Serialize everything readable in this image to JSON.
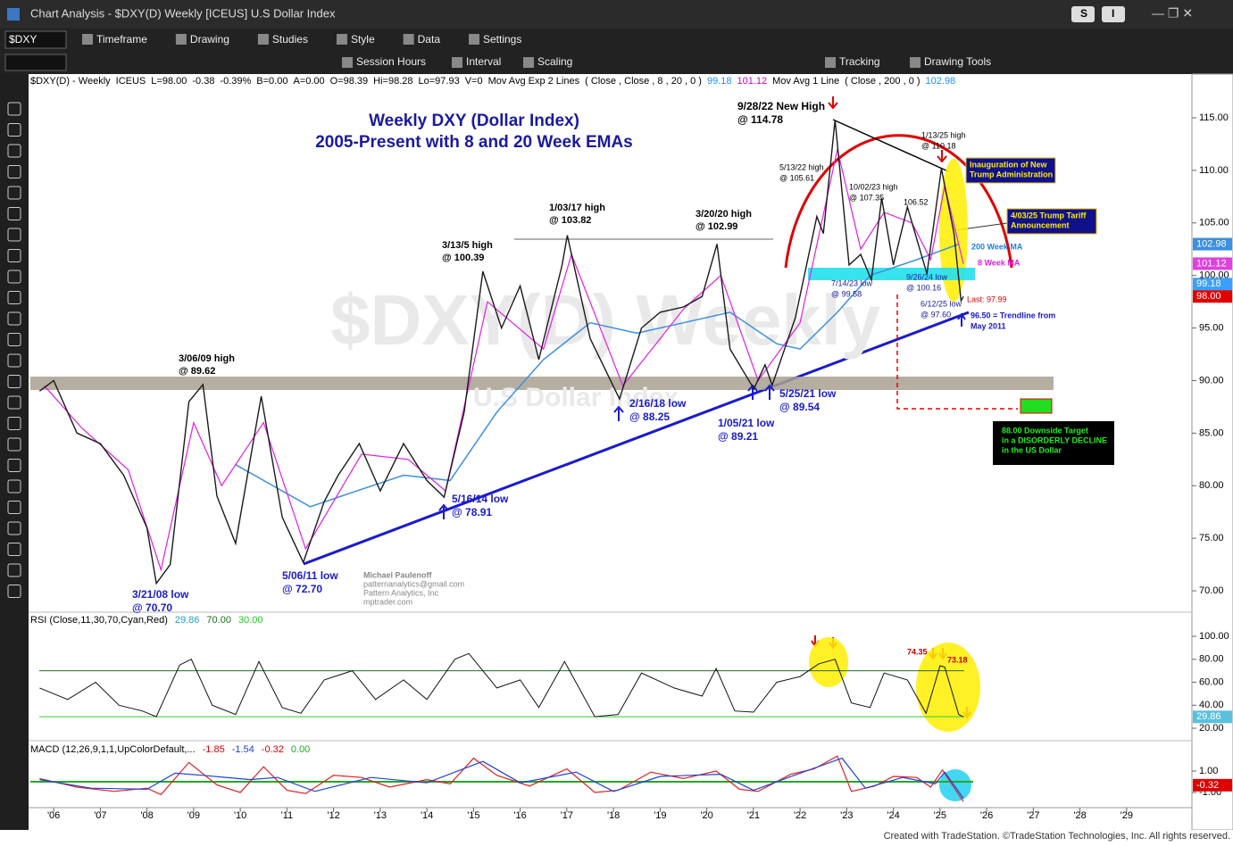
{
  "window": {
    "title": "Chart Analysis - $DXY(D) Weekly [ICEUS] U.S Dollar Index",
    "buttons": [
      "S",
      "I"
    ]
  },
  "toolbar1": {
    "symbol": "$DXY",
    "items": [
      "Timeframe",
      "Drawing",
      "Studies",
      "Style",
      "Data",
      "Settings"
    ]
  },
  "toolbar2": {
    "items": [
      "Session Hours",
      "Interval",
      "Scaling",
      "Tracking",
      "Drawing Tools"
    ]
  },
  "info_line": [
    {
      "text": "$DXY(D) - Weekly",
      "color": "#000"
    },
    {
      "text": "ICEUS",
      "color": "#000"
    },
    {
      "text": "L=98.00",
      "color": "#000"
    },
    {
      "text": "-0.38",
      "color": "#000"
    },
    {
      "text": "-0.39%",
      "color": "#000"
    },
    {
      "text": "B=0.00",
      "color": "#000"
    },
    {
      "text": "A=0.00",
      "color": "#000"
    },
    {
      "text": "O=98.39",
      "color": "#000"
    },
    {
      "text": "Hi=98.28",
      "color": "#000"
    },
    {
      "text": "Lo=97.93",
      "color": "#000"
    },
    {
      "text": "V=0",
      "color": "#000"
    },
    {
      "text": "Mov Avg Exp 2 Lines",
      "color": "#000"
    },
    {
      "text": "( Close , Close , 8 , 20 , 0 )",
      "color": "#000"
    },
    {
      "text": "99.18",
      "color": "#1e90ff"
    },
    {
      "text": "101.12",
      "color": "#d000d0"
    },
    {
      "text": "Mov Avg 1 Line",
      "color": "#000"
    },
    {
      "text": "( Close , 200 , 0 )",
      "color": "#000"
    },
    {
      "text": "102.98",
      "color": "#1e90ff"
    }
  ],
  "price_panel": {
    "title": [
      "Weekly DXY (Dollar Index)",
      "2005-Present with 8 and 20 Week EMAs"
    ],
    "watermark": [
      "$DXY(D) Weekly",
      "U.S Dollar Index"
    ],
    "xlim": [
      2005.5,
      2030.4
    ],
    "ylim": [
      68.05,
      117.97
    ],
    "xticks": [
      {
        "value": 2006,
        "label": "'06"
      },
      {
        "value": 2007,
        "label": "'07"
      },
      {
        "value": 2008,
        "label": "'08"
      },
      {
        "value": 2009,
        "label": "'09"
      },
      {
        "value": 2010,
        "label": "'10"
      },
      {
        "value": 2011,
        "label": "'11"
      },
      {
        "value": 2012,
        "label": "'12"
      },
      {
        "value": 2013,
        "label": "'13"
      },
      {
        "value": 2014,
        "label": "'14"
      },
      {
        "value": 2015,
        "label": "'15"
      },
      {
        "value": 2016,
        "label": "'16"
      },
      {
        "value": 2017,
        "label": "'17"
      },
      {
        "value": 2018,
        "label": "'18"
      },
      {
        "value": 2019,
        "label": "'19"
      },
      {
        "value": 2020,
        "label": "'20"
      },
      {
        "value": 2021,
        "label": "'21"
      },
      {
        "value": 2022,
        "label": "'22"
      },
      {
        "value": 2023,
        "label": "'23"
      },
      {
        "value": 2024,
        "label": "'24"
      },
      {
        "value": 2025,
        "label": "'25"
      },
      {
        "value": 2026,
        "label": "'26"
      },
      {
        "value": 2027,
        "label": "'27"
      },
      {
        "value": 2028,
        "label": "'28"
      },
      {
        "value": 2029,
        "label": "'29"
      }
    ],
    "yticks": [
      {
        "value": 70,
        "label": "70.00"
      },
      {
        "value": 75,
        "label": "75.00"
      },
      {
        "value": 80,
        "label": "80.00"
      },
      {
        "value": 85,
        "label": "85.00"
      },
      {
        "value": 90,
        "label": "90.00"
      },
      {
        "value": 95,
        "label": "95.00"
      },
      {
        "value": 100,
        "label": "100.00"
      },
      {
        "value": 105,
        "label": "105.00"
      },
      {
        "value": 110,
        "label": "110.00"
      },
      {
        "value": 115,
        "label": "115.00"
      }
    ],
    "price": {
      "color": "#1a1a1a",
      "x": [
        2005.7,
        2006.0,
        2006.5,
        2007.0,
        2007.5,
        2008.0,
        2008.2,
        2008.5,
        2008.9,
        2009.2,
        2009.5,
        2009.9,
        2010.45,
        2010.9,
        2011.35,
        2011.8,
        2012.1,
        2012.55,
        2013.0,
        2013.5,
        2014.0,
        2014.37,
        2014.8,
        2015.2,
        2015.6,
        2016.0,
        2016.4,
        2016.9,
        2017.01,
        2017.5,
        2018.13,
        2018.6,
        2019.0,
        2019.5,
        2019.9,
        2020.22,
        2020.5,
        2021.01,
        2021.25,
        2021.4,
        2021.9,
        2022.36,
        2022.5,
        2022.75,
        2023.05,
        2023.3,
        2023.53,
        2023.75,
        2024.0,
        2024.3,
        2024.72,
        2025.03,
        2025.3,
        2025.45,
        2025.5
      ],
      "values": [
        89,
        90,
        85,
        84,
        81,
        76,
        70.7,
        72.5,
        88,
        89.62,
        79,
        74.5,
        88.5,
        77,
        72.7,
        78.5,
        81,
        84,
        79.5,
        84,
        80.5,
        78.91,
        87,
        100.39,
        95,
        99,
        92,
        101,
        103.82,
        94,
        88.25,
        95,
        96.5,
        97,
        98,
        102.99,
        93,
        89.21,
        91.5,
        89.54,
        96,
        105.61,
        104,
        114.78,
        101,
        102,
        99.58,
        107.35,
        101,
        106.52,
        100.16,
        110.18,
        104,
        97.6,
        97.99
      ]
    },
    "ma8": {
      "color": "#e020e0",
      "x": [
        2005.8,
        2006.6,
        2007.6,
        2008.3,
        2009.0,
        2009.6,
        2010.5,
        2011.4,
        2012.6,
        2013.6,
        2014.4,
        2015.3,
        2016.5,
        2017.1,
        2018.2,
        2019.5,
        2020.3,
        2021.1,
        2022.0,
        2022.8,
        2023.3,
        2023.8,
        2024.4,
        2024.8,
        2025.1,
        2025.5
      ],
      "values": [
        89.5,
        85.5,
        81.5,
        72,
        86,
        80,
        86,
        74,
        83,
        82.5,
        79.5,
        97.5,
        93,
        102,
        89.5,
        96.8,
        100,
        90,
        95.5,
        112,
        102.5,
        106,
        105,
        101.5,
        108.5,
        101.12
      ]
    },
    "ma200": {
      "color": "#3d8fe0",
      "x": [
        2009.9,
        2010.5,
        2011.5,
        2012.5,
        2013.5,
        2014.5,
        2015.5,
        2016.5,
        2017.5,
        2018.5,
        2019.5,
        2020.5,
        2021.5,
        2022.0,
        2022.8,
        2023.5,
        2024.5,
        2025.4
      ],
      "values": [
        82,
        80.5,
        78,
        79.5,
        81,
        80.5,
        87,
        92,
        95.5,
        94.5,
        95.5,
        96.5,
        93.5,
        93,
        96.5,
        100,
        101.5,
        102.98
      ]
    },
    "annotations": [
      {
        "lines": [
          "9/28/22 New High",
          "@ 114.78"
        ],
        "color": "#000"
      },
      {
        "lines": [
          "5/13/22 high",
          "@ 105.61"
        ],
        "color": "#000"
      },
      {
        "lines": [
          "10/02/23 high",
          "@ 107.35"
        ],
        "color": "#000"
      },
      {
        "lines": [
          "106.52"
        ],
        "color": "#000"
      },
      {
        "lines": [
          "1/13/25 high",
          "@ 110.18"
        ],
        "color": "#000"
      },
      {
        "lines": [
          "3/13/5 high",
          "@ 100.39"
        ],
        "color": "#000"
      },
      {
        "lines": [
          "1/03/17 high",
          "@ 103.82"
        ],
        "color": "#000"
      },
      {
        "lines": [
          "3/20/20 high",
          "@ 102.99"
        ],
        "color": "#000"
      },
      {
        "lines": [
          "3/06/09 high",
          "@ 89.62"
        ],
        "color": "#000"
      },
      {
        "lines": [
          "7/14/23 low",
          "@ 99.58"
        ],
        "color": "#1a1aa0"
      },
      {
        "lines": [
          "9/26/24 low",
          "@ 100.16"
        ],
        "color": "#1a1aa0"
      },
      {
        "lines": [
          "6/12/25 low",
          "@ 97.60"
        ],
        "color": "#1a1aa0"
      },
      {
        "lines": [
          "Last: 97.99"
        ],
        "color": "#e00000"
      },
      {
        "lines": [
          "96.50 = Trendline from",
          "May 2011"
        ],
        "color": "#1a1ad0"
      },
      {
        "lines": [
          "200 Week MA"
        ],
        "color": "#2080e0"
      },
      {
        "lines": [
          "8 Week MA"
        ],
        "color": "#e020e0"
      },
      {
        "lines": [
          "5/25/21 low",
          "@ 89.54"
        ],
        "color": "#1a1ad0"
      },
      {
        "lines": [
          "1/05/21 low",
          "@ 89.21"
        ],
        "color": "#1a1ad0"
      },
      {
        "lines": [
          "2/16/18 low",
          "@ 88.25"
        ],
        "color": "#1a1ad0"
      },
      {
        "lines": [
          "5/16/14 low",
          "@ 78.91"
        ],
        "color": "#1a1ad0"
      },
      {
        "lines": [
          "5/06/11 low",
          "@ 72.70"
        ],
        "color": "#1a1ad0"
      },
      {
        "lines": [
          "3/21/08 low",
          "@ 70.70"
        ],
        "color": "#1a1ad0"
      }
    ],
    "boxes": [
      [
        "Inauguration of New",
        "Trump Administration"
      ],
      [
        "4/03/25 Trump Tariff",
        "Announcement"
      ]
    ],
    "target_box": [
      "88.00 Downside Target",
      "in a DISORDERLY DECLINE",
      "in the US Dollar"
    ],
    "credits": [
      "Michael Paulenoff",
      "patternanalytics@gmail.com",
      "Pattern Analytics, Inc",
      "mptrader.com"
    ],
    "markers": [
      {
        "value": 102.98,
        "label": "102.98",
        "color": "#3d8fe0"
      },
      {
        "value": 101.12,
        "label": "101.12",
        "color": "#e040e0"
      },
      {
        "value": 99.18,
        "label": "99.18",
        "color": "#3aa0ff"
      },
      {
        "value": 98,
        "label": "98.00",
        "color": "#e00000"
      }
    ]
  },
  "rsi_panel": {
    "label": [
      "RSI (Close,11,30,70,Cyan,Red)",
      "29.86",
      "70.00",
      "30.00"
    ],
    "ylim": [
      10.7,
      106.2
    ],
    "yticks": [
      {
        "value": 20,
        "label": "20.00"
      },
      {
        "value": 40,
        "label": "40.00"
      },
      {
        "value": 60,
        "label": "60.00"
      },
      {
        "value": 80,
        "label": "80.00"
      },
      {
        "value": 100,
        "label": "100.00"
      }
    ],
    "levels": [
      70,
      30
    ],
    "rsi": {
      "x": [
        2005.7,
        2006.3,
        2006.9,
        2007.4,
        2007.9,
        2008.2,
        2008.7,
        2008.95,
        2009.4,
        2009.9,
        2010.4,
        2010.9,
        2011.3,
        2011.8,
        2012.4,
        2012.9,
        2013.5,
        2014.0,
        2014.6,
        2014.9,
        2015.5,
        2016.0,
        2016.4,
        2016.95,
        2017.6,
        2018.1,
        2018.6,
        2019.3,
        2019.9,
        2020.2,
        2020.6,
        2021.0,
        2021.5,
        2022.0,
        2022.4,
        2022.75,
        2023.1,
        2023.5,
        2023.8,
        2024.3,
        2024.7,
        2025.0,
        2025.1,
        2025.4,
        2025.5
      ],
      "values": [
        55,
        45,
        60,
        40,
        35,
        30,
        75,
        80,
        40,
        32,
        78,
        38,
        33,
        62,
        70,
        45,
        62,
        45,
        80,
        85,
        55,
        62,
        38,
        78,
        30,
        32,
        68,
        55,
        48,
        72,
        35,
        34,
        60,
        65,
        76,
        80,
        42,
        38,
        68,
        62,
        33,
        74.35,
        73.18,
        32,
        29.86
      ]
    },
    "notes": [
      "74.35",
      "73.18"
    ],
    "marker": {
      "value": 29.86,
      "label": "29.86"
    }
  },
  "macd_panel": {
    "label": [
      "MACD (12,26,9,1,1,UpColorDefault,...",
      "-1.85",
      "-1.54",
      "-0.32",
      "0.00"
    ],
    "ylim": [
      -2.0,
      3.42
    ],
    "yticks": [
      {
        "value": -1,
        "label": "-1.00"
      },
      {
        "value": 1,
        "label": "1.00"
      }
    ],
    "macd": {
      "x": [
        2005.7,
        2006.5,
        2007.3,
        2008.0,
        2008.3,
        2008.9,
        2009.5,
        2010.0,
        2010.5,
        2011.0,
        2011.4,
        2012.0,
        2012.6,
        2013.2,
        2014.0,
        2014.5,
        2015.0,
        2015.5,
        2016.2,
        2017.0,
        2017.6,
        2018.1,
        2018.8,
        2019.5,
        2020.2,
        2020.7,
        2021.1,
        2021.8,
        2022.3,
        2022.8,
        2023.1,
        2023.6,
        2024.0,
        2024.5,
        2024.8,
        2025.05,
        2025.5
      ],
      "values": [
        0.3,
        -0.5,
        -0.9,
        -0.6,
        -1.2,
        1.8,
        -0.3,
        -1.0,
        1.4,
        -0.8,
        -1.1,
        0.6,
        0.4,
        -0.5,
        0.2,
        -0.2,
        2.2,
        0.6,
        -0.4,
        1.2,
        -1.0,
        -0.8,
        0.9,
        0.3,
        1.0,
        -0.7,
        -0.9,
        0.7,
        1.2,
        2.4,
        -0.9,
        -0.4,
        0.5,
        0.4,
        -0.5,
        1.1,
        -1.85
      ]
    },
    "signal": {
      "x": [
        2005.7,
        2006.8,
        2008.0,
        2008.6,
        2009.2,
        2010.2,
        2010.8,
        2011.6,
        2012.8,
        2014.0,
        2015.2,
        2016.0,
        2017.2,
        2018.0,
        2019.0,
        2020.3,
        2021.0,
        2022.0,
        2022.9,
        2023.4,
        2024.2,
        2024.9,
        2025.1,
        2025.5
      ],
      "values": [
        0.2,
        -0.6,
        -0.7,
        0.8,
        0.6,
        0.2,
        0.4,
        -0.9,
        0.4,
        -0.1,
        1.9,
        -0.1,
        0.9,
        -0.9,
        0.5,
        0.7,
        -0.8,
        0.8,
        2.2,
        -0.6,
        0.4,
        -0.2,
        0.9,
        -1.54
      ]
    },
    "marker": {
      "value": -0.32,
      "label": "-0.32"
    }
  },
  "footer": "Created with TradeStation. ©TradeStation Technologies, Inc. All rights reserved."
}
